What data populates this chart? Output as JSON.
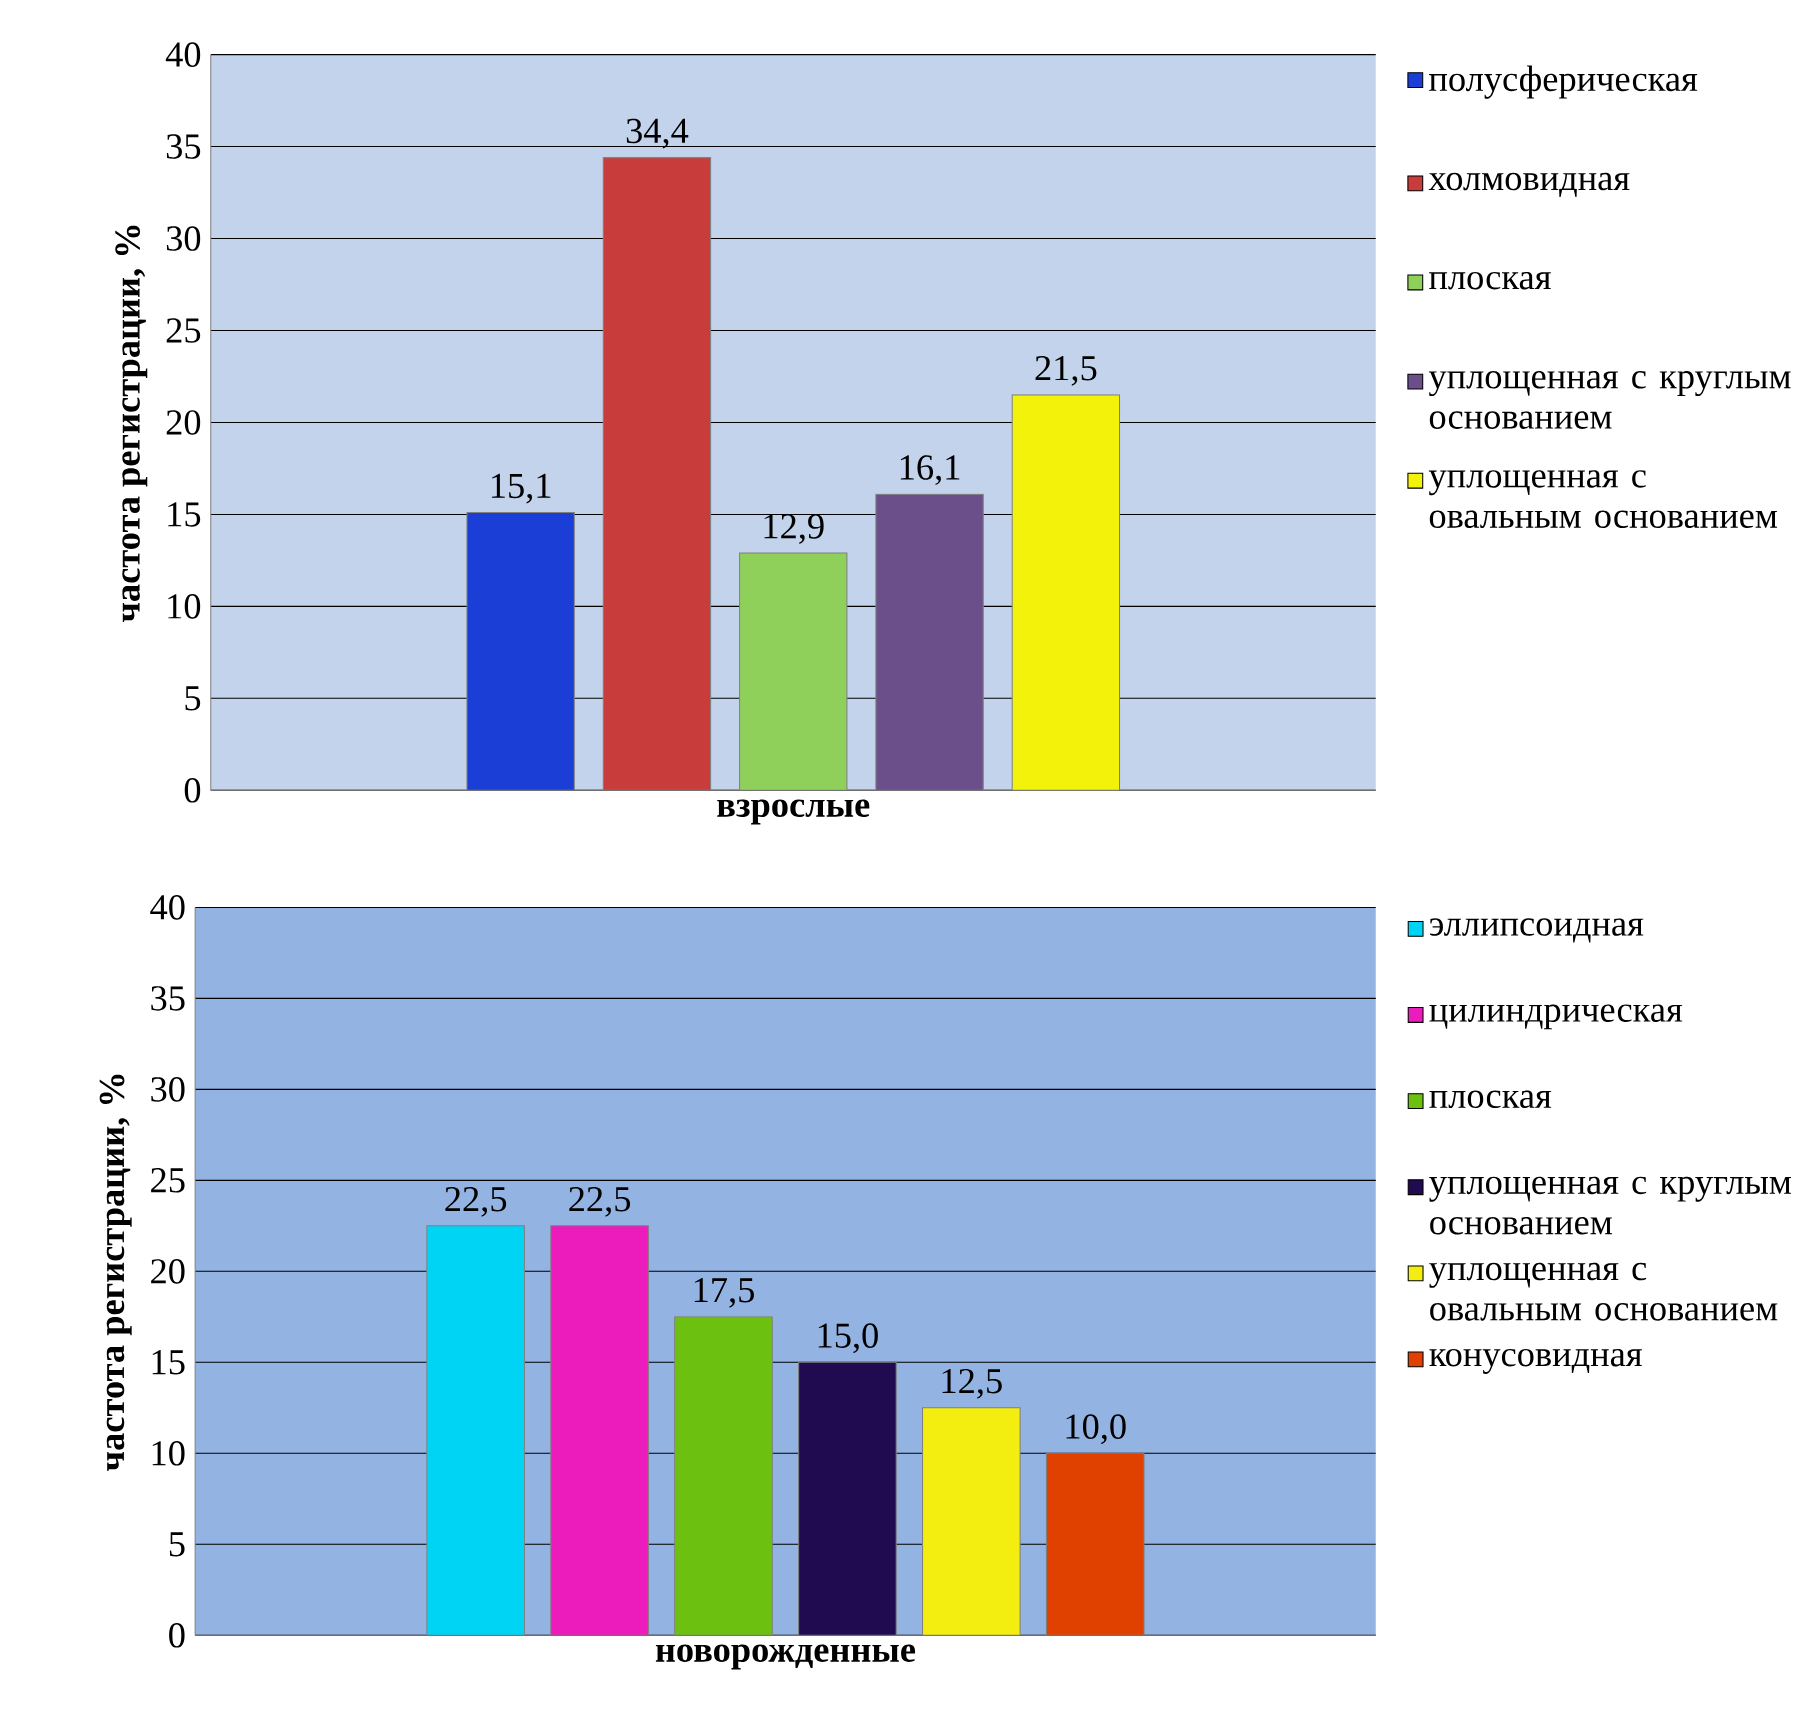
{
  "chart_data": [
    {
      "type": "bar",
      "xlabel": "взрослые",
      "ylabel": "частота регистрации, %",
      "categories": [
        null
      ],
      "ylim": [
        0,
        40
      ],
      "yticks": [
        0,
        5,
        10,
        15,
        20,
        25,
        30,
        35,
        40
      ],
      "grid": "y",
      "legend": "right",
      "series": [
        {
          "name": "полусферическая",
          "color": "#1a3ed6",
          "values": [
            15.1
          ],
          "value_labels": [
            "15,1"
          ]
        },
        {
          "name": "холмовидная",
          "color": "#c83c3c",
          "values": [
            34.4
          ],
          "value_labels": [
            "34,4"
          ]
        },
        {
          "name": "плоская",
          "color": "#8fd05a",
          "values": [
            12.9
          ],
          "value_labels": [
            "12,9"
          ]
        },
        {
          "name": "уплощенная с круглым основанием",
          "color": "#6b4f8a",
          "values": [
            16.1
          ],
          "value_labels": [
            "16,1"
          ]
        },
        {
          "name": "уплощенная с овальным основанием",
          "color": "#f2f20a",
          "values": [
            21.5
          ],
          "value_labels": [
            "21,5"
          ]
        }
      ]
    },
    {
      "type": "bar",
      "xlabel": "новорожденные",
      "ylabel": "частота регистрации, %",
      "categories": [
        null
      ],
      "ylim": [
        0,
        40
      ],
      "yticks": [
        0,
        5,
        10,
        15,
        20,
        25,
        30,
        35,
        40
      ],
      "grid": "y",
      "legend": "right",
      "series": [
        {
          "name": "эллипсоидная",
          "color": "#00d4f4",
          "values": [
            22.5
          ],
          "value_labels": [
            "22,5"
          ]
        },
        {
          "name": "цилиндрическая",
          "color": "#ec1cbc",
          "values": [
            22.5
          ],
          "value_labels": [
            "22,5"
          ]
        },
        {
          "name": "плоская",
          "color": "#6cc010",
          "values": [
            17.5
          ],
          "value_labels": [
            "17,5"
          ]
        },
        {
          "name": "уплощенная с круглым основанием",
          "color": "#200a50",
          "values": [
            15.0
          ],
          "value_labels": [
            "15,0"
          ]
        },
        {
          "name": "уплощенная с овальным основанием",
          "color": "#f4ee10",
          "values": [
            12.5
          ],
          "value_labels": [
            "12,5"
          ]
        },
        {
          "name": "конусовидная",
          "color": "#e04000",
          "values": [
            10.0
          ],
          "value_labels": [
            "10,0"
          ]
        }
      ]
    }
  ]
}
